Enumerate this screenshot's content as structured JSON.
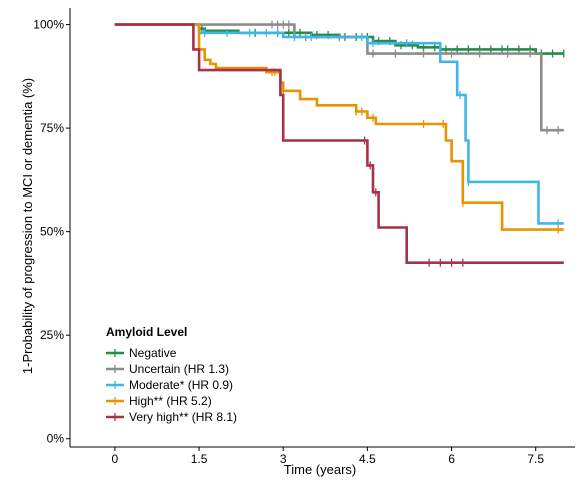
{
  "chart_data": {
    "type": "line",
    "step": true,
    "xlabel": "Time (years)",
    "ylabel": "1-Probability of progression to MCI or dementia (%)",
    "xlim": [
      -0.8,
      8.2
    ],
    "ylim": [
      -0.02,
      1.04
    ],
    "xticks": [
      0,
      1.5,
      3,
      4.5,
      6,
      7.5
    ],
    "xtick_labels": [
      "0",
      "1.5",
      "3",
      "4.5",
      "6",
      "7.5"
    ],
    "yticks": [
      0,
      0.25,
      0.5,
      0.75,
      1.0
    ],
    "ytick_labels": [
      "0%",
      "25%",
      "50%",
      "75%",
      "100%"
    ],
    "grid": false,
    "legend": {
      "title": "Amyloid Level",
      "position": "bottom-left"
    },
    "series": [
      {
        "name": "Negative",
        "color": "#238b45",
        "steps": [
          [
            0,
            1.0
          ],
          [
            1.5,
            0.99
          ],
          [
            1.6,
            0.985
          ],
          [
            2.2,
            0.98
          ],
          [
            3.5,
            0.975
          ],
          [
            4.0,
            0.97
          ],
          [
            4.6,
            0.96
          ],
          [
            5.0,
            0.95
          ],
          [
            5.4,
            0.945
          ],
          [
            5.8,
            0.94
          ],
          [
            7.5,
            0.93
          ],
          [
            8.0,
            0.93
          ]
        ],
        "censor": [
          1.55,
          2.5,
          2.9,
          3.1,
          3.3,
          3.6,
          3.8,
          4.1,
          4.3,
          4.5,
          4.7,
          4.9,
          5.1,
          5.3,
          5.5,
          5.7,
          5.9,
          6.1,
          6.3,
          6.5,
          6.7,
          6.9,
          7.0,
          7.2,
          7.4,
          7.6,
          7.8,
          8.0
        ]
      },
      {
        "name": "Uncertain (HR 1.3)",
        "color": "#8c8c8c",
        "steps": [
          [
            0,
            1.0
          ],
          [
            1.5,
            1.0
          ],
          [
            3.2,
            0.97
          ],
          [
            4.5,
            0.93
          ],
          [
            7.6,
            0.745
          ],
          [
            8.0,
            0.745
          ]
        ],
        "censor": [
          2.8,
          2.9,
          3.0,
          3.1,
          3.4,
          4.0,
          4.6,
          5.0,
          5.5,
          6.0,
          6.5,
          7.0,
          7.4,
          7.7,
          7.9
        ]
      },
      {
        "name": "Moderate* (HR 0.9)",
        "color": "#41b6e6",
        "steps": [
          [
            0,
            1.0
          ],
          [
            1.5,
            0.98
          ],
          [
            3.0,
            0.97
          ],
          [
            4.5,
            0.955
          ],
          [
            5.8,
            0.91
          ],
          [
            6.1,
            0.83
          ],
          [
            6.25,
            0.72
          ],
          [
            6.3,
            0.62
          ],
          [
            7.55,
            0.52
          ],
          [
            8.0,
            0.52
          ]
        ],
        "censor": [
          1.6,
          2.0,
          2.4,
          2.7,
          2.9,
          3.2,
          3.5,
          4.4,
          4.6,
          5.2,
          6.15,
          6.3,
          7.9
        ]
      },
      {
        "name": "High** (HR 5.2)",
        "color": "#e69500",
        "steps": [
          [
            0,
            1.0
          ],
          [
            1.5,
            0.94
          ],
          [
            1.6,
            0.915
          ],
          [
            1.7,
            0.905
          ],
          [
            1.8,
            0.895
          ],
          [
            2.7,
            0.885
          ],
          [
            2.95,
            0.86
          ],
          [
            3.0,
            0.84
          ],
          [
            3.3,
            0.82
          ],
          [
            3.6,
            0.805
          ],
          [
            4.3,
            0.79
          ],
          [
            4.5,
            0.775
          ],
          [
            4.65,
            0.76
          ],
          [
            5.9,
            0.72
          ],
          [
            6.0,
            0.67
          ],
          [
            6.2,
            0.57
          ],
          [
            6.9,
            0.505
          ],
          [
            8.0,
            0.505
          ]
        ],
        "censor": [
          2.8,
          2.85,
          3.0,
          4.3,
          4.4,
          4.6,
          5.5,
          5.85,
          6.2,
          7.9
        ]
      },
      {
        "name": "Very high** (HR 8.1)",
        "color": "#a63248",
        "steps": [
          [
            0,
            1.0
          ],
          [
            1.4,
            0.94
          ],
          [
            1.5,
            0.89
          ],
          [
            2.95,
            0.83
          ],
          [
            3.0,
            0.72
          ],
          [
            4.5,
            0.66
          ],
          [
            4.6,
            0.595
          ],
          [
            4.7,
            0.51
          ],
          [
            5.2,
            0.425
          ],
          [
            8.0,
            0.425
          ]
        ],
        "censor": [
          4.45,
          4.55,
          4.65,
          5.6,
          5.8,
          6.0,
          6.2
        ]
      }
    ]
  }
}
